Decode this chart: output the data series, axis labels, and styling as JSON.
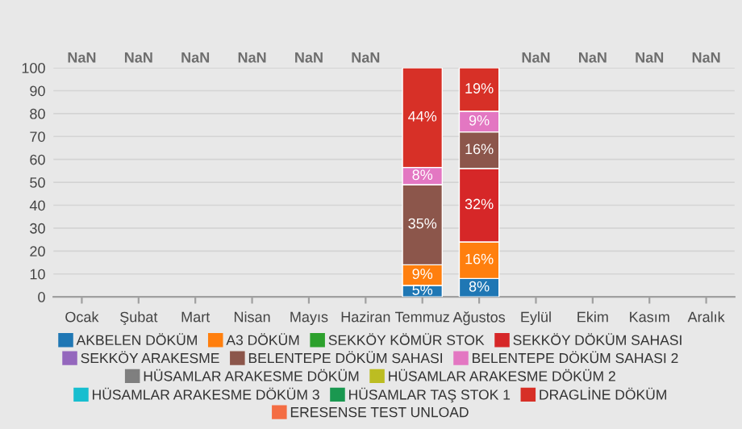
{
  "chart_data": {
    "type": "bar",
    "stacked": true,
    "categories": [
      "Ocak",
      "Şubat",
      "Mart",
      "Nisan",
      "Mayıs",
      "Haziran",
      "Temmuz",
      "Ağustos",
      "Eylül",
      "Ekim",
      "Kasım",
      "Aralık"
    ],
    "ylim": [
      0,
      100
    ],
    "yticks": [
      0,
      10,
      20,
      30,
      40,
      50,
      60,
      70,
      80,
      90,
      100
    ],
    "grid": "y",
    "legend": "bottom",
    "totals": [
      "NaN",
      "NaN",
      "NaN",
      "NaN",
      "NaN",
      "NaN",
      null,
      null,
      "NaN",
      "NaN",
      "NaN",
      "NaN"
    ],
    "series": [
      {
        "name": "AKBELEN DÖKÜM",
        "color": "#1f77b4",
        "values": [
          null,
          null,
          null,
          null,
          null,
          null,
          5,
          8,
          null,
          null,
          null,
          null
        ],
        "value_labels": [
          null,
          null,
          null,
          null,
          null,
          null,
          "5%",
          "8%",
          null,
          null,
          null,
          null
        ]
      },
      {
        "name": "A3 DÖKÜM",
        "color": "#ff7f0e",
        "values": [
          null,
          null,
          null,
          null,
          null,
          null,
          9,
          16,
          null,
          null,
          null,
          null
        ],
        "value_labels": [
          null,
          null,
          null,
          null,
          null,
          null,
          "9%",
          "16%",
          null,
          null,
          null,
          null
        ]
      },
      {
        "name": "SEKKÖY KÖMÜR STOK",
        "color": "#2ca02c",
        "values": [
          null,
          null,
          null,
          null,
          null,
          null,
          null,
          null,
          null,
          null,
          null,
          null
        ]
      },
      {
        "name": "SEKKÖY DÖKÜM SAHASI",
        "color": "#d62728",
        "values": [
          null,
          null,
          null,
          null,
          null,
          null,
          null,
          32,
          null,
          null,
          null,
          null
        ],
        "value_labels": [
          null,
          null,
          null,
          null,
          null,
          null,
          null,
          "32%",
          null,
          null,
          null,
          null
        ]
      },
      {
        "name": "SEKKÖY ARAKESME",
        "color": "#9467bd",
        "values": [
          null,
          null,
          null,
          null,
          null,
          null,
          null,
          null,
          null,
          null,
          null,
          null
        ]
      },
      {
        "name": "BELENTEPE DÖKÜM SAHASI",
        "color": "#8c564b",
        "values": [
          null,
          null,
          null,
          null,
          null,
          null,
          35,
          16,
          null,
          null,
          null,
          null
        ],
        "value_labels": [
          null,
          null,
          null,
          null,
          null,
          null,
          "35%",
          "16%",
          null,
          null,
          null,
          null
        ]
      },
      {
        "name": "BELENTEPE DÖKÜM SAHASI 2",
        "color": "#e377c2",
        "values": [
          null,
          null,
          null,
          null,
          null,
          null,
          7.5,
          9,
          null,
          null,
          null,
          null
        ],
        "value_labels": [
          null,
          null,
          null,
          null,
          null,
          null,
          "8%",
          "9%",
          null,
          null,
          null,
          null
        ]
      },
      {
        "name": "HÜSAMLAR ARAKESME DÖKÜM",
        "color": "#7f7f7f",
        "values": [
          null,
          null,
          null,
          null,
          null,
          null,
          null,
          null,
          null,
          null,
          null,
          null
        ]
      },
      {
        "name": "HÜSAMLAR ARAKESME DÖKÜM 2",
        "color": "#bcbd22",
        "values": [
          null,
          null,
          null,
          null,
          null,
          null,
          null,
          null,
          null,
          null,
          null,
          null
        ]
      },
      {
        "name": "HÜSAMLAR ARAKESME DÖKÜM 3",
        "color": "#17becf",
        "values": [
          null,
          null,
          null,
          null,
          null,
          null,
          null,
          null,
          null,
          null,
          null,
          null
        ]
      },
      {
        "name": "HÜSAMLAR TAŞ STOK 1",
        "color": "#1a9850",
        "values": [
          null,
          null,
          null,
          null,
          null,
          null,
          null,
          null,
          null,
          null,
          null,
          null
        ]
      },
      {
        "name": "DRAGLİNE DÖKÜM",
        "color": "#d73027",
        "values": [
          null,
          null,
          null,
          null,
          null,
          null,
          43.5,
          19,
          null,
          null,
          null,
          null
        ],
        "value_labels": [
          null,
          null,
          null,
          null,
          null,
          null,
          "44%",
          "19%",
          null,
          null,
          null,
          null
        ]
      },
      {
        "name": "ERESENSE TEST UNLOAD",
        "color": "#f46d43",
        "values": [
          null,
          null,
          null,
          null,
          null,
          null,
          null,
          null,
          null,
          null,
          null,
          null
        ]
      }
    ]
  }
}
